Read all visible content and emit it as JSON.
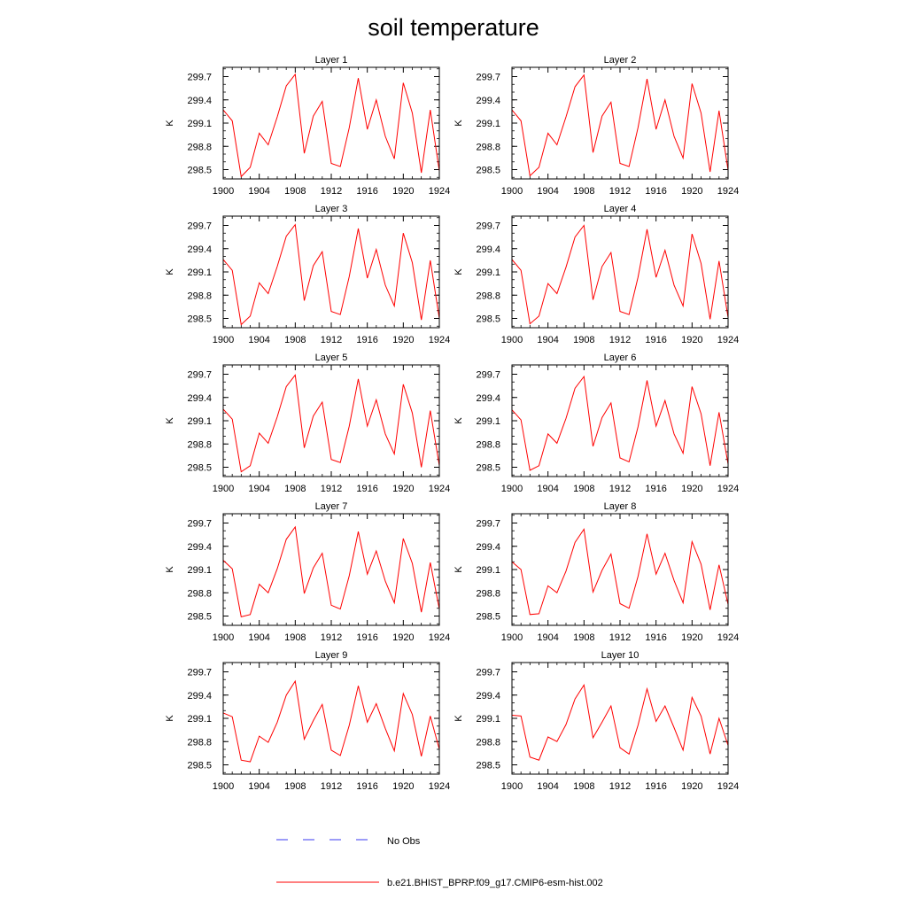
{
  "figure": {
    "title": "soil temperature",
    "ylabel": "K",
    "x_ticks": [
      1900,
      1904,
      1908,
      1912,
      1916,
      1920,
      1924
    ],
    "y_ticks": [
      298.5,
      298.8,
      299.1,
      299.4,
      299.7
    ],
    "y_tick_labels": [
      "298.5",
      "298.8",
      "299.1",
      "299.4",
      "299.7"
    ],
    "xlim": [
      1900,
      1924
    ],
    "ylim": [
      298.38,
      299.82
    ],
    "series_color": "#ff0000",
    "obs_color": "#3a3af0"
  },
  "legend": {
    "obs_label": "No Obs",
    "model_label": "b.e21.BHIST_BPRP.f09_g17.CMIP6-esm-hist.002"
  },
  "chart_data": [
    {
      "type": "line",
      "title": "Layer 1",
      "xlabel": "",
      "ylabel": "K",
      "x": [
        1900,
        1901,
        1902,
        1903,
        1904,
        1905,
        1906,
        1907,
        1908,
        1909,
        1910,
        1911,
        1912,
        1913,
        1914,
        1915,
        1916,
        1917,
        1918,
        1919,
        1920,
        1921,
        1922,
        1923,
        1924
      ],
      "series": [
        {
          "name": "b.e21.BHIST_BPRP.f09_g17.CMIP6-esm-hist.002",
          "values": [
            299.27,
            299.13,
            298.41,
            298.53,
            298.97,
            298.82,
            299.18,
            299.58,
            299.73,
            298.71,
            299.19,
            299.38,
            298.58,
            298.54,
            299.04,
            299.68,
            299.02,
            299.4,
            298.93,
            298.64,
            299.62,
            299.23,
            298.46,
            299.27,
            298.48
          ]
        }
      ]
    },
    {
      "type": "line",
      "title": "Layer 2",
      "xlabel": "",
      "ylabel": "K",
      "x": [
        1900,
        1901,
        1902,
        1903,
        1904,
        1905,
        1906,
        1907,
        1908,
        1909,
        1910,
        1911,
        1912,
        1913,
        1914,
        1915,
        1916,
        1917,
        1918,
        1919,
        1920,
        1921,
        1922,
        1923,
        1924
      ],
      "series": [
        {
          "name": "b.e21.BHIST_BPRP.f09_g17.CMIP6-esm-hist.002",
          "values": [
            299.27,
            299.13,
            298.42,
            298.53,
            298.97,
            298.82,
            299.18,
            299.57,
            299.72,
            298.72,
            299.19,
            299.37,
            298.58,
            298.54,
            299.04,
            299.67,
            299.02,
            299.4,
            298.93,
            298.65,
            299.61,
            299.23,
            298.47,
            299.26,
            298.49
          ]
        }
      ]
    },
    {
      "type": "line",
      "title": "Layer 3",
      "xlabel": "",
      "ylabel": "K",
      "x": [
        1900,
        1901,
        1902,
        1903,
        1904,
        1905,
        1906,
        1907,
        1908,
        1909,
        1910,
        1911,
        1912,
        1913,
        1914,
        1915,
        1916,
        1917,
        1918,
        1919,
        1920,
        1921,
        1922,
        1923,
        1924
      ],
      "series": [
        {
          "name": "b.e21.BHIST_BPRP.f09_g17.CMIP6-esm-hist.002",
          "values": [
            299.26,
            299.12,
            298.42,
            298.53,
            298.96,
            298.82,
            299.17,
            299.56,
            299.71,
            298.73,
            299.18,
            299.36,
            298.59,
            298.55,
            299.04,
            299.66,
            299.02,
            299.39,
            298.93,
            298.66,
            299.6,
            299.22,
            298.48,
            299.25,
            298.5
          ]
        }
      ]
    },
    {
      "type": "line",
      "title": "Layer 4",
      "xlabel": "",
      "ylabel": "K",
      "x": [
        1900,
        1901,
        1902,
        1903,
        1904,
        1905,
        1906,
        1907,
        1908,
        1909,
        1910,
        1911,
        1912,
        1913,
        1914,
        1915,
        1916,
        1917,
        1918,
        1919,
        1920,
        1921,
        1922,
        1923,
        1924
      ],
      "series": [
        {
          "name": "b.e21.BHIST_BPRP.f09_g17.CMIP6-esm-hist.002",
          "values": [
            299.26,
            299.12,
            298.43,
            298.53,
            298.95,
            298.82,
            299.16,
            299.55,
            299.7,
            298.74,
            299.17,
            299.35,
            298.59,
            298.55,
            299.03,
            299.65,
            299.03,
            299.38,
            298.93,
            298.66,
            299.59,
            299.21,
            298.49,
            299.24,
            298.51
          ]
        }
      ]
    },
    {
      "type": "line",
      "title": "Layer 5",
      "xlabel": "",
      "ylabel": "K",
      "x": [
        1900,
        1901,
        1902,
        1903,
        1904,
        1905,
        1906,
        1907,
        1908,
        1909,
        1910,
        1911,
        1912,
        1913,
        1914,
        1915,
        1916,
        1917,
        1918,
        1919,
        1920,
        1921,
        1922,
        1923,
        1924
      ],
      "series": [
        {
          "name": "b.e21.BHIST_BPRP.f09_g17.CMIP6-esm-hist.002",
          "values": [
            299.25,
            299.12,
            298.44,
            298.52,
            298.94,
            298.81,
            299.15,
            299.54,
            299.69,
            298.75,
            299.16,
            299.34,
            298.6,
            298.56,
            299.03,
            299.64,
            299.03,
            299.37,
            298.93,
            298.67,
            299.57,
            299.2,
            298.5,
            299.23,
            298.52
          ]
        }
      ]
    },
    {
      "type": "line",
      "title": "Layer 6",
      "xlabel": "",
      "ylabel": "K",
      "x": [
        1900,
        1901,
        1902,
        1903,
        1904,
        1905,
        1906,
        1907,
        1908,
        1909,
        1910,
        1911,
        1912,
        1913,
        1914,
        1915,
        1916,
        1917,
        1918,
        1919,
        1920,
        1921,
        1922,
        1923,
        1924
      ],
      "series": [
        {
          "name": "b.e21.BHIST_BPRP.f09_g17.CMIP6-esm-hist.002",
          "values": [
            299.24,
            299.11,
            298.46,
            298.52,
            298.93,
            298.81,
            299.13,
            299.52,
            299.67,
            298.77,
            299.14,
            299.33,
            298.62,
            298.57,
            299.02,
            299.62,
            299.03,
            299.36,
            298.93,
            298.68,
            299.54,
            299.19,
            298.52,
            299.21,
            298.54
          ]
        }
      ]
    },
    {
      "type": "line",
      "title": "Layer 7",
      "xlabel": "",
      "ylabel": "K",
      "x": [
        1900,
        1901,
        1902,
        1903,
        1904,
        1905,
        1906,
        1907,
        1908,
        1909,
        1910,
        1911,
        1912,
        1913,
        1914,
        1915,
        1916,
        1917,
        1918,
        1919,
        1920,
        1921,
        1922,
        1923,
        1924
      ],
      "series": [
        {
          "name": "b.e21.BHIST_BPRP.f09_g17.CMIP6-esm-hist.002",
          "values": [
            299.22,
            299.11,
            298.49,
            298.52,
            298.91,
            298.8,
            299.11,
            299.49,
            299.65,
            298.79,
            299.12,
            299.31,
            298.64,
            298.59,
            299.02,
            299.59,
            299.04,
            299.34,
            298.95,
            298.67,
            299.5,
            299.18,
            298.55,
            299.19,
            298.59
          ]
        }
      ]
    },
    {
      "type": "line",
      "title": "Layer 8",
      "xlabel": "",
      "ylabel": "K",
      "x": [
        1900,
        1901,
        1902,
        1903,
        1904,
        1905,
        1906,
        1907,
        1908,
        1909,
        1910,
        1911,
        1912,
        1913,
        1914,
        1915,
        1916,
        1917,
        1918,
        1919,
        1920,
        1921,
        1922,
        1923,
        1924
      ],
      "series": [
        {
          "name": "b.e21.BHIST_BPRP.f09_g17.CMIP6-esm-hist.002",
          "values": [
            299.2,
            299.1,
            298.52,
            298.53,
            298.89,
            298.8,
            299.08,
            299.45,
            299.62,
            298.81,
            299.09,
            299.3,
            298.66,
            298.6,
            299.01,
            299.56,
            299.04,
            299.31,
            298.96,
            298.67,
            299.46,
            299.17,
            298.58,
            299.16,
            298.65
          ]
        }
      ]
    },
    {
      "type": "line",
      "title": "Layer 9",
      "xlabel": "",
      "ylabel": "K",
      "x": [
        1900,
        1901,
        1902,
        1903,
        1904,
        1905,
        1906,
        1907,
        1908,
        1909,
        1910,
        1911,
        1912,
        1913,
        1914,
        1915,
        1916,
        1917,
        1918,
        1919,
        1920,
        1921,
        1922,
        1923,
        1924
      ],
      "series": [
        {
          "name": "b.e21.BHIST_BPRP.f09_g17.CMIP6-esm-hist.002",
          "values": [
            299.17,
            299.12,
            298.56,
            298.54,
            298.87,
            298.79,
            299.05,
            299.4,
            299.58,
            298.83,
            299.07,
            299.28,
            298.69,
            298.62,
            299.01,
            299.52,
            299.05,
            299.29,
            298.97,
            298.68,
            299.42,
            299.15,
            298.61,
            299.13,
            298.7
          ]
        }
      ]
    },
    {
      "type": "line",
      "title": "Layer 10",
      "xlabel": "",
      "ylabel": "K",
      "x": [
        1900,
        1901,
        1902,
        1903,
        1904,
        1905,
        1906,
        1907,
        1908,
        1909,
        1910,
        1911,
        1912,
        1913,
        1914,
        1915,
        1916,
        1917,
        1918,
        1919,
        1920,
        1921,
        1922,
        1923,
        1924
      ],
      "series": [
        {
          "name": "b.e21.BHIST_BPRP.f09_g17.CMIP6-esm-hist.002",
          "values": [
            299.14,
            299.13,
            298.6,
            298.56,
            298.86,
            298.8,
            299.02,
            299.35,
            299.53,
            298.85,
            299.05,
            299.26,
            298.72,
            298.64,
            299.01,
            299.48,
            299.06,
            299.26,
            298.98,
            298.69,
            299.37,
            299.13,
            298.64,
            299.1,
            298.75
          ]
        }
      ]
    }
  ]
}
